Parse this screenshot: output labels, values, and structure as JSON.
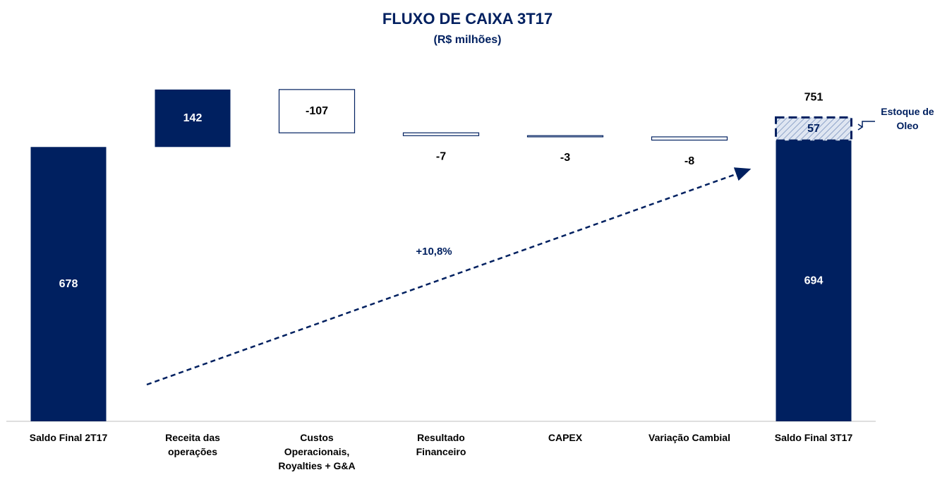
{
  "chart_data": {
    "type": "waterfall",
    "title": "FLUXO DE CAIXA 3T17",
    "subtitle": "(R$ milhões)",
    "categories": [
      "Saldo Final 2T17",
      "Receita das operações",
      "Custos Operacionais, Royalties + G&A",
      "Resultado Financeiro",
      "CAPEX",
      "Variação Cambial",
      "Saldo Final 3T17"
    ],
    "values": [
      678,
      142,
      -107,
      -7,
      -3,
      -8,
      694
    ],
    "color": "#002060",
    "extra_segment": {
      "name": "Estoque de Oleo",
      "value": 57
    },
    "total": 751,
    "annotation": "+10,8%",
    "ylim": [
      0,
      900
    ]
  }
}
